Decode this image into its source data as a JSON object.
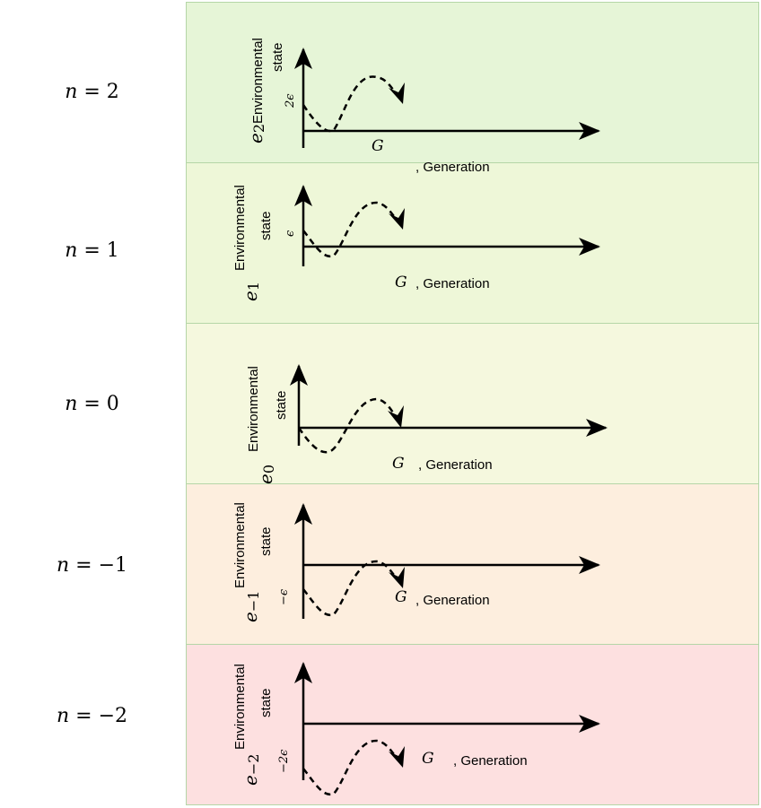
{
  "rows": [
    {
      "n_label": "n = 2",
      "n_var": "n",
      "n_val": "= 2",
      "fill": "#e6f5d7",
      "e_sym": "e",
      "e_sub": "2",
      "level": "2ϵ",
      "axis_label": "Environmental",
      "axis_label2": "state",
      "g": "G",
      "gen": ", Generation"
    },
    {
      "n_label": "n = 1",
      "n_var": "n",
      "n_val": "= 1",
      "fill": "#eef7d8",
      "e_sym": "e",
      "e_sub": "1",
      "level": "ϵ",
      "axis_label": "Environmental",
      "axis_label2": "state",
      "g": "G",
      "gen": ", Generation"
    },
    {
      "n_label": "n = 0",
      "n_var": "n",
      "n_val": "= 0",
      "fill": "#f5f8de",
      "e_sym": "e",
      "e_sub": "0",
      "level": "",
      "axis_label": "Environmental",
      "axis_label2": "state",
      "g": "G",
      "gen": ", Generation"
    },
    {
      "n_label": "n = −1",
      "n_var": "n",
      "n_val": "= −1",
      "fill": "#fdeede",
      "e_sym": "e",
      "e_sub": "−1",
      "level": "−ϵ",
      "axis_label": "Environmental",
      "axis_label2": "state",
      "g": "G",
      "gen": ", Generation"
    },
    {
      "n_label": "n = −2",
      "n_var": "n",
      "n_val": "= −2",
      "fill": "#fde0e0",
      "e_sym": "e",
      "e_sub": "−2",
      "level": "−2ϵ",
      "axis_label": "Environmental",
      "axis_label2": "state",
      "g": "G",
      "gen": ", Generation"
    }
  ]
}
